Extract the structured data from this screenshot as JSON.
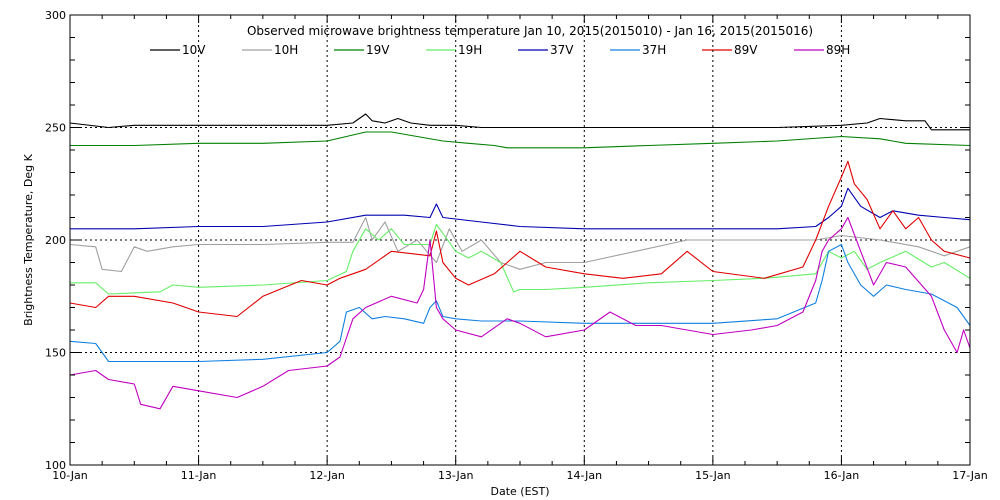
{
  "chart_data": {
    "type": "line",
    "title": "Observed microwave brightness temperature Jan 10, 2015(2015010) - Jan 16, 2015(2015016)",
    "xlabel": "Date (EST)",
    "ylabel": "Brightness Temperature, Deg K",
    "xlim": [
      0,
      7
    ],
    "ylim": [
      100,
      300
    ],
    "x_ticks": [
      {
        "value": 0,
        "label": "10-Jan"
      },
      {
        "value": 1,
        "label": "11-Jan"
      },
      {
        "value": 2,
        "label": "12-Jan"
      },
      {
        "value": 3,
        "label": "13-Jan"
      },
      {
        "value": 4,
        "label": "14-Jan"
      },
      {
        "value": 5,
        "label": "15-Jan"
      },
      {
        "value": 6,
        "label": "16-Jan"
      },
      {
        "value": 7,
        "label": "17-Jan"
      }
    ],
    "y_ticks": [
      {
        "value": 100,
        "label": "100"
      },
      {
        "value": 150,
        "label": "150"
      },
      {
        "value": 200,
        "label": "200"
      },
      {
        "value": 250,
        "label": "250"
      },
      {
        "value": 300,
        "label": "300"
      }
    ],
    "grid": "dotted at labeled ticks",
    "legend": "top, single row",
    "series": [
      {
        "name": "10V",
        "color": "#000000",
        "x": [
          0,
          0.3,
          0.5,
          1.0,
          1.5,
          2.0,
          2.2,
          2.3,
          2.35,
          2.45,
          2.55,
          2.65,
          2.8,
          3.0,
          3.2,
          3.5,
          4.0,
          4.5,
          5.0,
          5.5,
          6.0,
          6.2,
          6.3,
          6.5,
          6.65,
          6.7,
          7.0
        ],
        "y": [
          252,
          250,
          251,
          251,
          251,
          251,
          252,
          256,
          253,
          252,
          254,
          252,
          251,
          251,
          250,
          250,
          250,
          250,
          250,
          250,
          251,
          252,
          254,
          253,
          253,
          249,
          249
        ]
      },
      {
        "name": "10H",
        "color": "#a0a0a0",
        "x": [
          0,
          0.2,
          0.25,
          0.4,
          0.5,
          0.6,
          0.8,
          1.0,
          1.5,
          2.0,
          2.2,
          2.3,
          2.35,
          2.45,
          2.55,
          2.7,
          2.85,
          2.95,
          3.05,
          3.2,
          3.35,
          3.5,
          3.7,
          4.0,
          4.4,
          4.8,
          5.0,
          5.5,
          5.8,
          6.0,
          6.3,
          6.6,
          6.8,
          7.0
        ],
        "y": [
          198,
          197,
          187,
          186,
          197,
          195,
          197,
          198,
          198,
          199,
          199,
          210,
          200,
          208,
          195,
          200,
          190,
          205,
          195,
          200,
          190,
          187,
          190,
          190,
          195,
          200,
          200,
          200,
          200,
          202,
          200,
          197,
          193,
          197
        ]
      },
      {
        "name": "19V",
        "color": "#008000",
        "x": [
          0,
          0.5,
          1.0,
          1.5,
          2.0,
          2.3,
          2.5,
          2.7,
          2.9,
          3.1,
          3.3,
          3.4,
          3.6,
          4.0,
          4.5,
          5.0,
          5.5,
          6.0,
          6.3,
          6.5,
          7.0
        ],
        "y": [
          242,
          242,
          243,
          243,
          244,
          248,
          248,
          246,
          244,
          243,
          242,
          241,
          241,
          241,
          242,
          243,
          244,
          246,
          245,
          243,
          242
        ]
      },
      {
        "name": "19H",
        "color": "#66ee66",
        "x": [
          0,
          0.2,
          0.3,
          0.7,
          0.8,
          1.0,
          1.5,
          2.0,
          2.15,
          2.2,
          2.3,
          2.4,
          2.5,
          2.6,
          2.8,
          2.85,
          3.0,
          3.1,
          3.2,
          3.35,
          3.45,
          3.5,
          3.7,
          4.0,
          4.5,
          5.0,
          5.4,
          5.8,
          5.9,
          6.0,
          6.1,
          6.2,
          6.3,
          6.5,
          6.7,
          6.8,
          7.0
        ],
        "y": [
          181,
          181,
          176,
          177,
          180,
          179,
          180,
          182,
          186,
          195,
          205,
          200,
          205,
          198,
          198,
          207,
          195,
          192,
          195,
          190,
          177,
          178,
          178,
          179,
          181,
          182,
          183,
          185,
          195,
          192,
          195,
          187,
          190,
          195,
          188,
          190,
          183
        ]
      },
      {
        "name": "37V",
        "color": "#0000b0",
        "x": [
          0,
          0.5,
          1.0,
          1.5,
          2.0,
          2.3,
          2.6,
          2.8,
          2.85,
          2.9,
          3.2,
          3.5,
          4.0,
          4.5,
          5.0,
          5.5,
          5.8,
          5.9,
          6.0,
          6.05,
          6.15,
          6.3,
          6.4,
          6.6,
          6.8,
          7.0
        ],
        "y": [
          205,
          205,
          206,
          206,
          208,
          211,
          211,
          210,
          216,
          210,
          208,
          206,
          205,
          205,
          205,
          205,
          206,
          210,
          215,
          223,
          215,
          210,
          213,
          211,
          210,
          209
        ]
      },
      {
        "name": "37H",
        "color": "#1080e0",
        "x": [
          0,
          0.2,
          0.3,
          0.5,
          1.0,
          1.5,
          2.0,
          2.1,
          2.15,
          2.25,
          2.35,
          2.45,
          2.6,
          2.75,
          2.8,
          2.85,
          2.9,
          3.0,
          3.2,
          3.5,
          4.0,
          4.5,
          5.0,
          5.5,
          5.8,
          5.85,
          5.9,
          6.0,
          6.05,
          6.15,
          6.25,
          6.35,
          6.5,
          6.7,
          6.9,
          7.0
        ],
        "y": [
          155,
          154,
          146,
          146,
          146,
          147,
          150,
          155,
          168,
          170,
          165,
          166,
          165,
          163,
          170,
          173,
          166,
          165,
          164,
          164,
          163,
          163,
          163,
          165,
          172,
          182,
          195,
          198,
          190,
          180,
          175,
          180,
          178,
          176,
          170,
          162
        ]
      },
      {
        "name": "89V",
        "color": "#e00000",
        "x": [
          0,
          0.2,
          0.3,
          0.5,
          0.8,
          1.0,
          1.3,
          1.5,
          1.8,
          2.0,
          2.1,
          2.3,
          2.5,
          2.8,
          2.85,
          2.9,
          3.0,
          3.1,
          3.3,
          3.5,
          3.7,
          4.0,
          4.3,
          4.6,
          4.8,
          5.0,
          5.4,
          5.7,
          5.8,
          5.9,
          6.0,
          6.05,
          6.1,
          6.2,
          6.3,
          6.4,
          6.5,
          6.6,
          6.7,
          6.8,
          7.0
        ],
        "y": [
          172,
          170,
          175,
          175,
          172,
          168,
          166,
          175,
          182,
          180,
          183,
          187,
          195,
          193,
          204,
          190,
          183,
          180,
          185,
          195,
          188,
          185,
          183,
          185,
          195,
          186,
          183,
          188,
          200,
          215,
          228,
          235,
          225,
          218,
          205,
          213,
          205,
          210,
          200,
          195,
          192
        ]
      },
      {
        "name": "89H",
        "color": "#c000c0",
        "x": [
          0,
          0.2,
          0.3,
          0.5,
          0.55,
          0.7,
          0.8,
          1.0,
          1.3,
          1.5,
          1.7,
          2.0,
          2.1,
          2.2,
          2.3,
          2.5,
          2.7,
          2.75,
          2.8,
          2.85,
          2.9,
          3.0,
          3.2,
          3.4,
          3.5,
          3.7,
          4.0,
          4.2,
          4.4,
          4.6,
          5.0,
          5.3,
          5.5,
          5.7,
          5.8,
          5.85,
          5.9,
          6.0,
          6.05,
          6.15,
          6.25,
          6.35,
          6.5,
          6.7,
          6.8,
          6.9,
          6.95,
          7.0
        ],
        "y": [
          140,
          142,
          138,
          136,
          127,
          125,
          135,
          133,
          130,
          135,
          142,
          144,
          148,
          165,
          170,
          175,
          172,
          178,
          200,
          170,
          165,
          160,
          157,
          165,
          163,
          157,
          160,
          168,
          162,
          162,
          158,
          160,
          162,
          168,
          182,
          195,
          200,
          205,
          210,
          195,
          180,
          190,
          188,
          175,
          160,
          150,
          160,
          152
        ]
      }
    ]
  }
}
